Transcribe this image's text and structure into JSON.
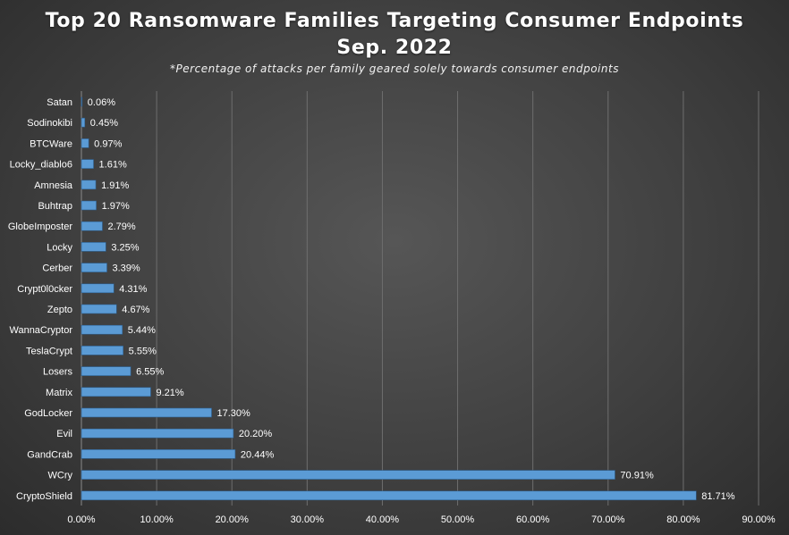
{
  "chart_data": {
    "type": "bar",
    "orientation": "horizontal",
    "title_lines": [
      "Top 20 Ransomware Families Targeting Consumer Endpoints",
      "Sep. 2022"
    ],
    "subtitle": "*Percentage of attacks per family geared solely towards consumer endpoints",
    "categories": [
      "Satan",
      "Sodinokibi",
      "BTCWare",
      "Locky_diablo6",
      "Amnesia",
      "Buhtrap",
      "GlobeImposter",
      "Locky",
      "Cerber",
      "Crypt0l0cker",
      "Zepto",
      "WannaCryptor",
      "TeslaCrypt",
      "Losers",
      "Matrix",
      "GodLocker",
      "Evil",
      "GandCrab",
      "WCry",
      "CryptoShield"
    ],
    "values": [
      0.06,
      0.45,
      0.97,
      1.61,
      1.91,
      1.97,
      2.79,
      3.25,
      3.39,
      4.31,
      4.67,
      5.44,
      5.55,
      6.55,
      9.21,
      17.3,
      20.2,
      20.44,
      70.91,
      81.71
    ],
    "data_labels": [
      "0.06%",
      "0.45%",
      "0.97%",
      "1.61%",
      "1.91%",
      "1.97%",
      "2.79%",
      "3.25%",
      "3.39%",
      "4.31%",
      "4.67%",
      "5.44%",
      "5.55%",
      "6.55%",
      "9.21%",
      "17.30%",
      "20.20%",
      "20.44%",
      "70.91%",
      "81.71%"
    ],
    "xlim": [
      0,
      90
    ],
    "xticks": [
      0,
      10,
      20,
      30,
      40,
      50,
      60,
      70,
      80,
      90
    ],
    "xtick_labels": [
      "0.00%",
      "10.00%",
      "20.00%",
      "30.00%",
      "40.00%",
      "50.00%",
      "60.00%",
      "70.00%",
      "80.00%",
      "90.00%"
    ],
    "xlabel": "",
    "ylabel": "",
    "grid": "vertical",
    "legend": "none",
    "bar_color": "#5b9bd5",
    "grid_color": "#6e6e6e"
  }
}
